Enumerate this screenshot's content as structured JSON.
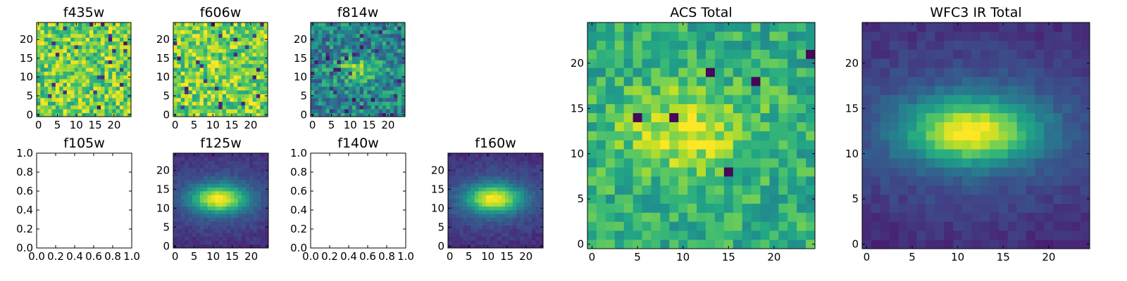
{
  "chart_data": [
    {
      "type": "heatmap",
      "title": "f435w",
      "colormap": "viridis",
      "grid": false,
      "image_size": [
        25,
        25
      ],
      "xticks": [
        0,
        5,
        10,
        15,
        20
      ],
      "yticks": [
        0,
        5,
        10,
        15,
        20
      ],
      "xlim": [
        -0.5,
        24.5
      ],
      "ylim": [
        -0.5,
        24.5
      ],
      "pattern": "noise",
      "mean_level": 0.78
    },
    {
      "type": "heatmap",
      "title": "f606w",
      "colormap": "viridis",
      "grid": false,
      "image_size": [
        25,
        25
      ],
      "xticks": [
        0,
        5,
        10,
        15,
        20
      ],
      "yticks": [
        0,
        5,
        10,
        15,
        20
      ],
      "xlim": [
        -0.5,
        24.5
      ],
      "ylim": [
        -0.5,
        24.5
      ],
      "pattern": "noise",
      "mean_level": 0.8
    },
    {
      "type": "heatmap",
      "title": "f814w",
      "colormap": "viridis",
      "grid": false,
      "image_size": [
        25,
        25
      ],
      "xticks": [
        0,
        5,
        10,
        15,
        20
      ],
      "yticks": [
        0,
        5,
        10,
        15,
        20
      ],
      "xlim": [
        -0.5,
        24.5
      ],
      "ylim": [
        -0.5,
        24.5
      ],
      "pattern": "faint-source",
      "source_center": [
        12,
        12
      ]
    },
    {
      "type": "empty",
      "title": "f105w",
      "xticks": [
        "0.0",
        "0.2",
        "0.4",
        "0.6",
        "0.8",
        "1.0"
      ],
      "yticks": [
        "0.0",
        "0.2",
        "0.4",
        "0.6",
        "0.8",
        "1.0"
      ],
      "xlim": [
        0,
        1
      ],
      "ylim": [
        0,
        1
      ]
    },
    {
      "type": "heatmap",
      "title": "f125w",
      "colormap": "viridis",
      "grid": false,
      "image_size": [
        25,
        25
      ],
      "xticks": [
        0,
        5,
        10,
        15,
        20
      ],
      "yticks": [
        0,
        5,
        10,
        15,
        20
      ],
      "xlim": [
        -0.5,
        24.5
      ],
      "ylim": [
        -0.5,
        24.5
      ],
      "pattern": "elliptical-source",
      "source_center": [
        11.5,
        12.5
      ]
    },
    {
      "type": "empty",
      "title": "f140w",
      "xticks": [
        "0.0",
        "0.2",
        "0.4",
        "0.6",
        "0.8",
        "1.0"
      ],
      "yticks": [
        "0.0",
        "0.2",
        "0.4",
        "0.6",
        "0.8",
        "1.0"
      ],
      "xlim": [
        0,
        1
      ],
      "ylim": [
        0,
        1
      ]
    },
    {
      "type": "heatmap",
      "title": "f160w",
      "colormap": "viridis",
      "grid": false,
      "image_size": [
        25,
        25
      ],
      "xticks": [
        0,
        5,
        10,
        15,
        20
      ],
      "yticks": [
        0,
        5,
        10,
        15,
        20
      ],
      "xlim": [
        -0.5,
        24.5
      ],
      "ylim": [
        -0.5,
        24.5
      ],
      "pattern": "elliptical-source",
      "source_center": [
        11.5,
        12.5
      ]
    },
    {
      "type": "heatmap",
      "title": "ACS Total",
      "colormap": "viridis",
      "grid": false,
      "image_size": [
        25,
        25
      ],
      "xticks": [
        0,
        5,
        10,
        15,
        20
      ],
      "yticks": [
        0,
        5,
        10,
        15,
        20
      ],
      "xlim": [
        -0.5,
        24.5
      ],
      "ylim": [
        -0.5,
        24.5
      ],
      "pattern": "noisy-source",
      "source_center": [
        10.5,
        12.5
      ]
    },
    {
      "type": "heatmap",
      "title": "WFC3 IR Total",
      "colormap": "viridis",
      "grid": false,
      "image_size": [
        25,
        25
      ],
      "xticks": [
        0,
        5,
        10,
        15,
        20
      ],
      "yticks": [
        0,
        5,
        10,
        15,
        20
      ],
      "xlim": [
        -0.5,
        24.5
      ],
      "ylim": [
        -0.5,
        24.5
      ],
      "pattern": "elliptical-source",
      "source_center": [
        11.5,
        12.5
      ]
    }
  ]
}
